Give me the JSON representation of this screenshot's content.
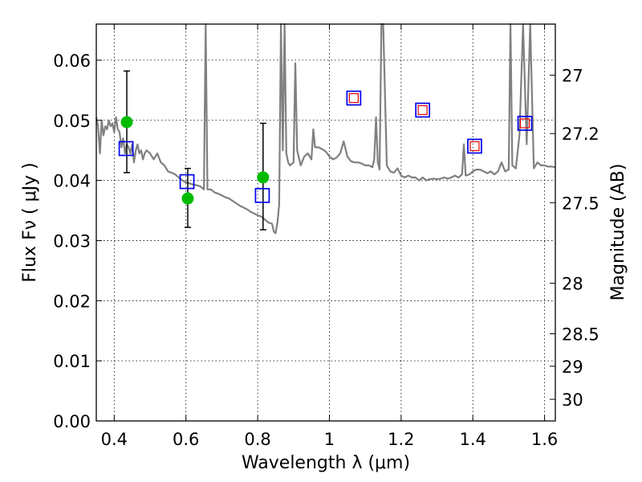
{
  "chart_data": {
    "type": "scatter",
    "xlabel": "Wavelength  λ (μm)",
    "ylabel": "Flux  Fν  ( μJy )",
    "ylabel_right": "Magnitude (AB)",
    "xlim": [
      0.35,
      1.63
    ],
    "ylim": [
      0.0,
      0.066
    ],
    "grid": true,
    "x_ticks": [
      0.4,
      0.6,
      0.8,
      1.0,
      1.2,
      1.4,
      1.6
    ],
    "x_tick_labels": [
      "0.4",
      "0.6",
      "0.8",
      "1",
      "1.2",
      "1.4",
      "1.6"
    ],
    "y_ticks": [
      0.0,
      0.01,
      0.02,
      0.03,
      0.04,
      0.05,
      0.06
    ],
    "y_tick_labels": [
      "0.00",
      "0.01",
      "0.02",
      "0.03",
      "0.04",
      "0.05",
      "0.06"
    ],
    "right_ticks": [
      {
        "label": "27",
        "flux": 0.0575
      },
      {
        "label": "27.2",
        "flux": 0.0478
      },
      {
        "label": "27.5",
        "flux": 0.0363
      },
      {
        "label": "28",
        "flux": 0.0229
      },
      {
        "label": "28.5",
        "flux": 0.0145
      },
      {
        "label": "29",
        "flux": 0.0091
      },
      {
        "label": "30",
        "flux": 0.0036
      }
    ],
    "colors": {
      "model": "#808080",
      "observed": "#00bb00",
      "model_phot": "#0000ee",
      "inner_square": "#ee0000",
      "errorbar": "#000000"
    },
    "series": [
      {
        "values": [
          [
            0.35,
            0.0505
          ],
          [
            0.355,
            0.049
          ],
          [
            0.36,
            0.0445
          ],
          [
            0.365,
            0.05
          ],
          [
            0.37,
            0.0475
          ],
          [
            0.375,
            0.049
          ],
          [
            0.38,
            0.0485
          ],
          [
            0.385,
            0.05
          ],
          [
            0.39,
            0.049
          ],
          [
            0.395,
            0.0495
          ],
          [
            0.4,
            0.048
          ],
          [
            0.405,
            0.0505
          ],
          [
            0.41,
            0.0485
          ],
          [
            0.415,
            0.048
          ],
          [
            0.42,
            0.0455
          ],
          [
            0.425,
            0.047
          ],
          [
            0.43,
            0.0445
          ],
          [
            0.435,
            0.046
          ],
          [
            0.44,
            0.0455
          ],
          [
            0.445,
            0.0445
          ],
          [
            0.45,
            0.046
          ],
          [
            0.455,
            0.043
          ],
          [
            0.46,
            0.045
          ],
          [
            0.465,
            0.046
          ],
          [
            0.47,
            0.0445
          ],
          [
            0.475,
            0.045
          ],
          [
            0.48,
            0.0435
          ],
          [
            0.485,
            0.0445
          ],
          [
            0.49,
            0.045
          ],
          [
            0.5,
            0.0445
          ],
          [
            0.51,
            0.0435
          ],
          [
            0.52,
            0.0445
          ],
          [
            0.53,
            0.043
          ],
          [
            0.54,
            0.0425
          ],
          [
            0.55,
            0.0415
          ],
          [
            0.56,
            0.0413
          ],
          [
            0.57,
            0.041
          ],
          [
            0.58,
            0.0405
          ],
          [
            0.59,
            0.04
          ],
          [
            0.6,
            0.0397
          ],
          [
            0.61,
            0.0395
          ],
          [
            0.62,
            0.0393
          ],
          [
            0.63,
            0.0392
          ],
          [
            0.64,
            0.039
          ],
          [
            0.65,
            0.0385
          ],
          [
            0.655,
            0.066
          ],
          [
            0.66,
            0.0385
          ],
          [
            0.67,
            0.0385
          ],
          [
            0.68,
            0.038
          ],
          [
            0.69,
            0.0378
          ],
          [
            0.7,
            0.0375
          ],
          [
            0.71,
            0.0372
          ],
          [
            0.72,
            0.037
          ],
          [
            0.73,
            0.0366
          ],
          [
            0.74,
            0.0362
          ],
          [
            0.75,
            0.0358
          ],
          [
            0.76,
            0.0355
          ],
          [
            0.77,
            0.0352
          ],
          [
            0.78,
            0.0348
          ],
          [
            0.79,
            0.0345
          ],
          [
            0.8,
            0.0342
          ],
          [
            0.81,
            0.034
          ],
          [
            0.82,
            0.0335
          ],
          [
            0.83,
            0.033
          ],
          [
            0.84,
            0.0328
          ],
          [
            0.845,
            0.0315
          ],
          [
            0.85,
            0.0312
          ],
          [
            0.855,
            0.033
          ],
          [
            0.86,
            0.036
          ],
          [
            0.865,
            0.066
          ],
          [
            0.87,
            0.045
          ],
          [
            0.875,
            0.066
          ],
          [
            0.88,
            0.0445
          ],
          [
            0.885,
            0.043
          ],
          [
            0.89,
            0.0425
          ],
          [
            0.9,
            0.043
          ],
          [
            0.905,
            0.0595
          ],
          [
            0.91,
            0.045
          ],
          [
            0.92,
            0.0425
          ],
          [
            0.93,
            0.044
          ],
          [
            0.94,
            0.0445
          ],
          [
            0.95,
            0.0435
          ],
          [
            0.955,
            0.0485
          ],
          [
            0.96,
            0.0455
          ],
          [
            0.97,
            0.0455
          ],
          [
            0.98,
            0.0452
          ],
          [
            0.99,
            0.0448
          ],
          [
            1.0,
            0.044
          ],
          [
            1.01,
            0.0435
          ],
          [
            1.02,
            0.0438
          ],
          [
            1.03,
            0.0445
          ],
          [
            1.04,
            0.0465
          ],
          [
            1.05,
            0.044
          ],
          [
            1.06,
            0.0432
          ],
          [
            1.07,
            0.043
          ],
          [
            1.08,
            0.043
          ],
          [
            1.09,
            0.0428
          ],
          [
            1.1,
            0.0425
          ],
          [
            1.11,
            0.0425
          ],
          [
            1.12,
            0.0422
          ],
          [
            1.125,
            0.0435
          ],
          [
            1.13,
            0.0505
          ],
          [
            1.135,
            0.043
          ],
          [
            1.14,
            0.0418
          ],
          [
            1.145,
            0.066
          ],
          [
            1.15,
            0.066
          ],
          [
            1.16,
            0.0425
          ],
          [
            1.17,
            0.0415
          ],
          [
            1.18,
            0.0413
          ],
          [
            1.19,
            0.042
          ],
          [
            1.2,
            0.0408
          ],
          [
            1.21,
            0.0405
          ],
          [
            1.22,
            0.0408
          ],
          [
            1.23,
            0.0405
          ],
          [
            1.24,
            0.0405
          ],
          [
            1.25,
            0.04
          ],
          [
            1.26,
            0.0405
          ],
          [
            1.27,
            0.04
          ],
          [
            1.28,
            0.0402
          ],
          [
            1.29,
            0.0403
          ],
          [
            1.3,
            0.0402
          ],
          [
            1.31,
            0.0403
          ],
          [
            1.32,
            0.0405
          ],
          [
            1.33,
            0.0403
          ],
          [
            1.34,
            0.0405
          ],
          [
            1.35,
            0.0408
          ],
          [
            1.36,
            0.0405
          ],
          [
            1.37,
            0.041
          ],
          [
            1.375,
            0.046
          ],
          [
            1.38,
            0.0408
          ],
          [
            1.39,
            0.041
          ],
          [
            1.4,
            0.0415
          ],
          [
            1.41,
            0.0418
          ],
          [
            1.42,
            0.0418
          ],
          [
            1.43,
            0.0415
          ],
          [
            1.44,
            0.0412
          ],
          [
            1.45,
            0.0415
          ],
          [
            1.46,
            0.041
          ],
          [
            1.47,
            0.0415
          ],
          [
            1.48,
            0.043
          ],
          [
            1.49,
            0.0415
          ],
          [
            1.5,
            0.0418
          ],
          [
            1.505,
            0.066
          ],
          [
            1.51,
            0.0425
          ],
          [
            1.52,
            0.042
          ],
          [
            1.53,
            0.0475
          ],
          [
            1.54,
            0.066
          ],
          [
            1.55,
            0.046
          ],
          [
            1.56,
            0.066
          ],
          [
            1.57,
            0.042
          ],
          [
            1.58,
            0.043
          ],
          [
            1.59,
            0.0425
          ],
          [
            1.6,
            0.0425
          ],
          [
            1.61,
            0.0423
          ],
          [
            1.62,
            0.0423
          ],
          [
            1.63,
            0.0422
          ]
        ]
      },
      {
        "x": [
          0.435,
          0.605,
          0.815
        ],
        "y": [
          0.0497,
          0.037,
          0.0405
        ]
      },
      {
        "x": [
          0.435,
          0.605,
          0.815
        ],
        "low": [
          0.0413,
          0.0322,
          0.0318
        ],
        "high": [
          0.0582,
          0.042,
          0.0495
        ]
      },
      {
        "x": [
          0.433,
          0.603,
          0.813,
          1.068,
          1.26,
          1.405,
          1.545
        ],
        "y": [
          0.0453,
          0.0398,
          0.0375,
          0.0537,
          0.0517,
          0.0457,
          0.0495
        ]
      },
      {
        "x": [
          1.068,
          1.26,
          1.405,
          1.545
        ],
        "y": [
          0.0537,
          0.0517,
          0.0457,
          0.0495
        ]
      }
    ]
  }
}
